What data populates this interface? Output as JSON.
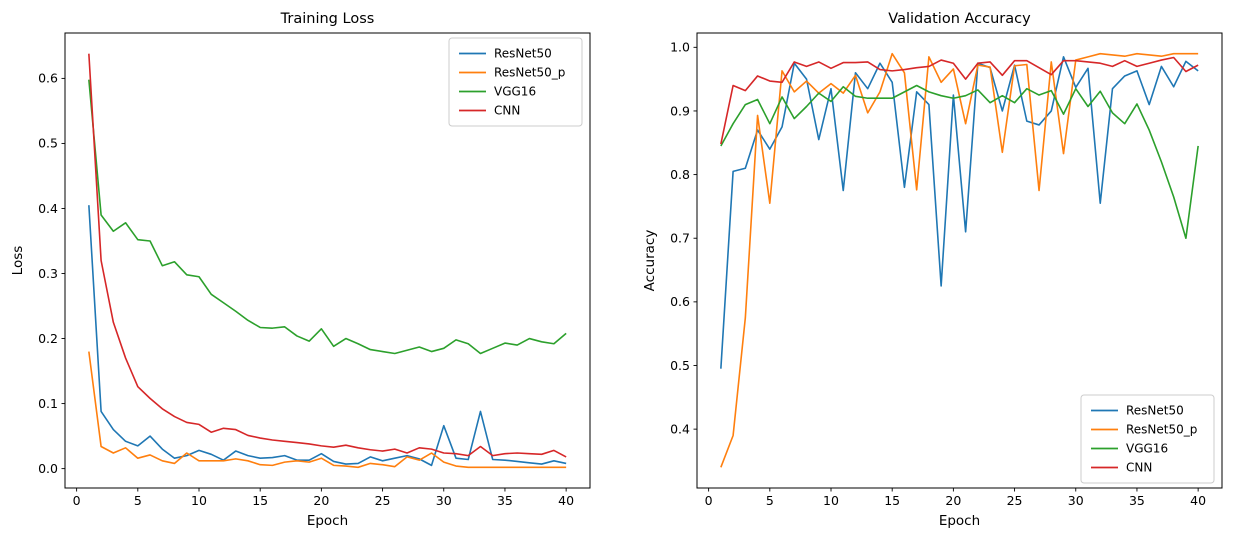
{
  "figure": {
    "background": "#ffffff",
    "text_color": "#000000",
    "spine_color": "#000000"
  },
  "chart_data": [
    {
      "id": "training-loss",
      "type": "line",
      "title": "Training Loss",
      "xlabel": "Epoch",
      "ylabel": "Loss",
      "x": [
        1,
        2,
        3,
        4,
        5,
        6,
        7,
        8,
        9,
        10,
        11,
        12,
        13,
        14,
        15,
        16,
        17,
        18,
        19,
        20,
        21,
        22,
        23,
        24,
        25,
        26,
        27,
        28,
        29,
        30,
        31,
        32,
        33,
        34,
        35,
        36,
        37,
        38,
        39,
        40
      ],
      "xlim": [
        -0.95,
        41.95
      ],
      "ylim": [
        -0.0298,
        0.6698
      ],
      "grid": false,
      "xticks": {
        "values": [
          0,
          5,
          10,
          15,
          20,
          25,
          30,
          35,
          40
        ],
        "labels": [
          "0",
          "5",
          "10",
          "15",
          "20",
          "25",
          "30",
          "35",
          "40"
        ]
      },
      "yticks": {
        "values": [
          0.0,
          0.1,
          0.2,
          0.3,
          0.4,
          0.5,
          0.6
        ],
        "labels": [
          "0.0",
          "0.1",
          "0.2",
          "0.3",
          "0.4",
          "0.5",
          "0.6"
        ]
      },
      "legend": {
        "position": "upper-right",
        "entries": [
          "ResNet50",
          "ResNet50_p",
          "VGG16",
          "CNN"
        ]
      },
      "series": [
        {
          "name": "ResNet50",
          "color": "#1f77b4",
          "values": [
            0.405,
            0.088,
            0.06,
            0.042,
            0.035,
            0.05,
            0.03,
            0.016,
            0.02,
            0.028,
            0.022,
            0.013,
            0.027,
            0.02,
            0.016,
            0.017,
            0.02,
            0.013,
            0.013,
            0.023,
            0.011,
            0.007,
            0.008,
            0.018,
            0.012,
            0.016,
            0.02,
            0.015,
            0.005,
            0.066,
            0.016,
            0.014,
            0.088,
            0.014,
            0.013,
            0.011,
            0.009,
            0.007,
            0.012,
            0.008
          ]
        },
        {
          "name": "ResNet50_p",
          "color": "#ff7f0e",
          "values": [
            0.18,
            0.034,
            0.024,
            0.032,
            0.016,
            0.021,
            0.012,
            0.008,
            0.024,
            0.012,
            0.012,
            0.012,
            0.015,
            0.012,
            0.006,
            0.005,
            0.01,
            0.012,
            0.01,
            0.016,
            0.005,
            0.004,
            0.002,
            0.008,
            0.006,
            0.003,
            0.018,
            0.013,
            0.024,
            0.01,
            0.004,
            0.002,
            0.002,
            0.002,
            0.002,
            0.002,
            0.002,
            0.002,
            0.002,
            0.002
          ]
        },
        {
          "name": "VGG16",
          "color": "#2ca02c",
          "values": [
            0.598,
            0.39,
            0.365,
            0.378,
            0.352,
            0.35,
            0.312,
            0.318,
            0.298,
            0.295,
            0.268,
            0.255,
            0.242,
            0.228,
            0.217,
            0.216,
            0.218,
            0.204,
            0.196,
            0.215,
            0.188,
            0.2,
            0.192,
            0.183,
            0.18,
            0.177,
            0.182,
            0.187,
            0.18,
            0.185,
            0.198,
            0.192,
            0.177,
            0.185,
            0.193,
            0.19,
            0.2,
            0.195,
            0.192,
            0.208
          ]
        },
        {
          "name": "CNN",
          "color": "#d62728",
          "values": [
            0.638,
            0.32,
            0.225,
            0.17,
            0.126,
            0.108,
            0.092,
            0.08,
            0.071,
            0.068,
            0.056,
            0.062,
            0.06,
            0.051,
            0.047,
            0.044,
            0.042,
            0.04,
            0.038,
            0.035,
            0.033,
            0.036,
            0.032,
            0.029,
            0.027,
            0.03,
            0.024,
            0.032,
            0.03,
            0.024,
            0.023,
            0.02,
            0.034,
            0.02,
            0.023,
            0.024,
            0.023,
            0.022,
            0.028,
            0.018
          ]
        }
      ]
    },
    {
      "id": "validation-accuracy",
      "type": "line",
      "title": "Validation Accuracy",
      "xlabel": "Epoch",
      "ylabel": "Accuracy",
      "x": [
        1,
        2,
        3,
        4,
        5,
        6,
        7,
        8,
        9,
        10,
        11,
        12,
        13,
        14,
        15,
        16,
        17,
        18,
        19,
        20,
        21,
        22,
        23,
        24,
        25,
        26,
        27,
        28,
        29,
        30,
        31,
        32,
        33,
        34,
        35,
        36,
        37,
        38,
        39,
        40
      ],
      "xlim": [
        -0.95,
        41.95
      ],
      "ylim": [
        0.3075,
        1.0225
      ],
      "grid": false,
      "xticks": {
        "values": [
          0,
          5,
          10,
          15,
          20,
          25,
          30,
          35,
          40
        ],
        "labels": [
          "0",
          "5",
          "10",
          "15",
          "20",
          "25",
          "30",
          "35",
          "40"
        ]
      },
      "yticks": {
        "values": [
          0.4,
          0.5,
          0.6,
          0.7,
          0.8,
          0.9,
          1.0
        ],
        "labels": [
          "0.4",
          "0.5",
          "0.6",
          "0.7",
          "0.8",
          "0.9",
          "1.0"
        ]
      },
      "legend": {
        "position": "lower-right",
        "entries": [
          "ResNet50",
          "ResNet50_p",
          "VGG16",
          "CNN"
        ]
      },
      "series": [
        {
          "name": "ResNet50",
          "color": "#1f77b4",
          "values": [
            0.495,
            0.805,
            0.81,
            0.87,
            0.84,
            0.875,
            0.975,
            0.95,
            0.855,
            0.935,
            0.775,
            0.96,
            0.935,
            0.975,
            0.945,
            0.78,
            0.93,
            0.91,
            0.625,
            0.925,
            0.71,
            0.975,
            0.968,
            0.9,
            0.972,
            0.884,
            0.878,
            0.9,
            0.985,
            0.937,
            0.967,
            0.755,
            0.935,
            0.955,
            0.963,
            0.91,
            0.97,
            0.938,
            0.978,
            0.963
          ]
        },
        {
          "name": "ResNet50_p",
          "color": "#ff7f0e",
          "values": [
            0.34,
            0.39,
            0.575,
            0.893,
            0.755,
            0.963,
            0.93,
            0.947,
            0.928,
            0.943,
            0.928,
            0.956,
            0.897,
            0.93,
            0.99,
            0.96,
            0.776,
            0.985,
            0.945,
            0.966,
            0.88,
            0.972,
            0.969,
            0.835,
            0.971,
            0.973,
            0.775,
            0.977,
            0.833,
            0.98,
            0.985,
            0.99,
            0.988,
            0.986,
            0.99,
            0.988,
            0.986,
            0.99,
            0.99,
            0.99
          ]
        },
        {
          "name": "VGG16",
          "color": "#2ca02c",
          "values": [
            0.845,
            0.88,
            0.91,
            0.918,
            0.88,
            0.922,
            0.888,
            0.907,
            0.928,
            0.915,
            0.938,
            0.923,
            0.92,
            0.92,
            0.92,
            0.93,
            0.94,
            0.93,
            0.924,
            0.92,
            0.924,
            0.933,
            0.913,
            0.924,
            0.913,
            0.935,
            0.925,
            0.932,
            0.895,
            0.935,
            0.907,
            0.931,
            0.897,
            0.88,
            0.911,
            0.87,
            0.82,
            0.765,
            0.7,
            0.845
          ]
        },
        {
          "name": "CNN",
          "color": "#d62728",
          "values": [
            0.848,
            0.94,
            0.932,
            0.955,
            0.947,
            0.945,
            0.977,
            0.97,
            0.977,
            0.967,
            0.976,
            0.976,
            0.977,
            0.965,
            0.963,
            0.965,
            0.968,
            0.97,
            0.98,
            0.975,
            0.95,
            0.975,
            0.977,
            0.956,
            0.979,
            0.979,
            0.968,
            0.957,
            0.979,
            0.979,
            0.977,
            0.975,
            0.97,
            0.979,
            0.97,
            0.975,
            0.98,
            0.984,
            0.962,
            0.972
          ]
        }
      ]
    }
  ]
}
